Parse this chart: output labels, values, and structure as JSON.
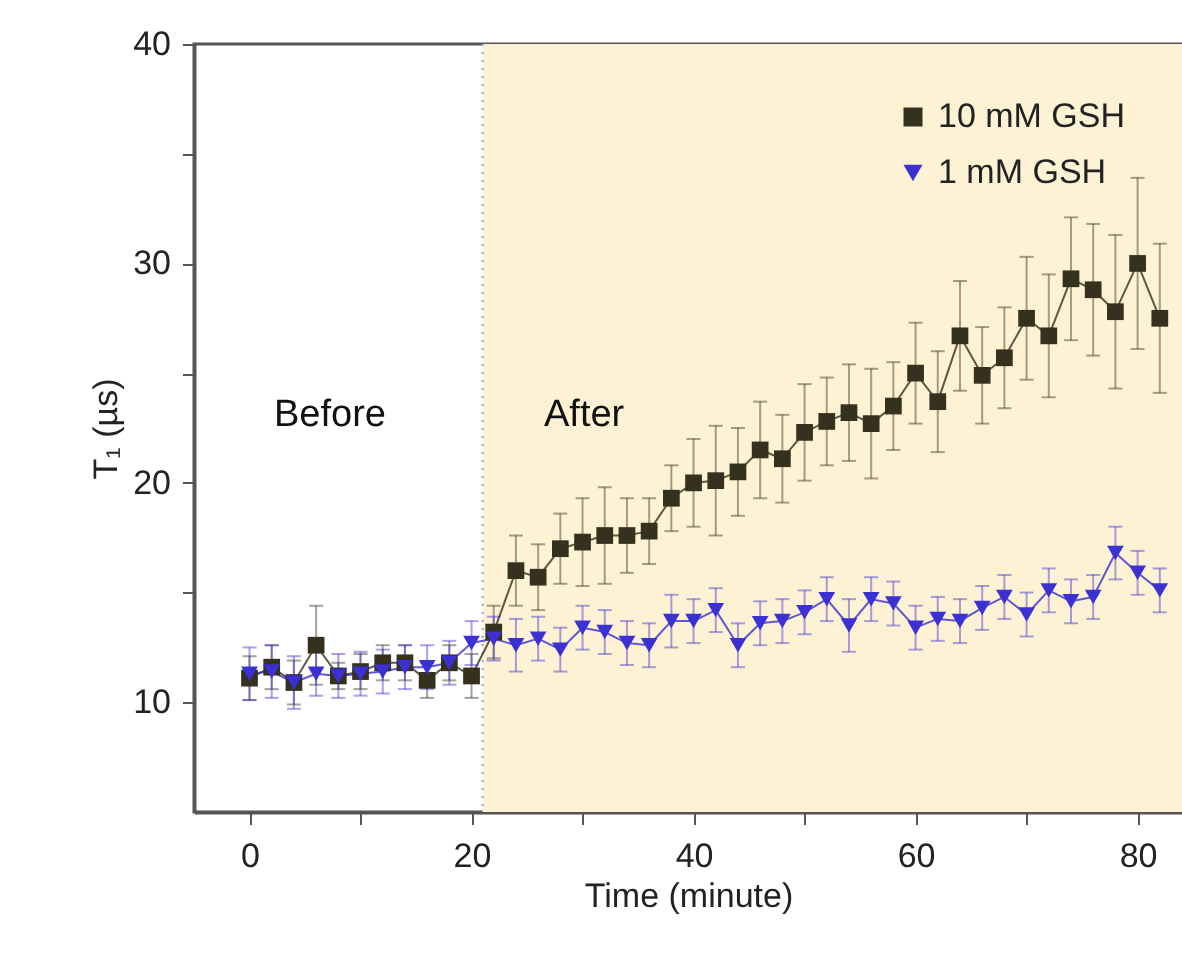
{
  "chart_data": {
    "type": "line",
    "xlabel": "Time (minute)",
    "ylabel": "T₁ (µs)",
    "x": [
      0,
      2,
      4,
      6,
      8,
      10,
      12,
      14,
      16,
      18,
      20,
      22,
      24,
      26,
      28,
      30,
      32,
      34,
      36,
      38,
      40,
      42,
      44,
      46,
      48,
      50,
      52,
      54,
      56,
      58,
      60,
      62,
      64,
      66,
      68,
      70,
      72,
      74,
      76,
      78,
      80,
      82
    ],
    "series": [
      {
        "name": "10 mM GSH",
        "color": "#35311e",
        "marker": "square",
        "values": [
          11.1,
          11.6,
          10.9,
          12.6,
          11.2,
          11.4,
          11.8,
          11.8,
          11.0,
          11.8,
          11.2,
          13.2,
          16.0,
          15.7,
          17.0,
          17.3,
          17.6,
          17.6,
          17.8,
          19.3,
          20.0,
          20.1,
          20.5,
          21.5,
          21.1,
          22.3,
          22.8,
          23.2,
          22.7,
          23.5,
          25.0,
          23.7,
          26.7,
          24.9,
          25.7,
          27.5,
          26.7,
          29.3,
          28.8,
          27.8,
          30.0,
          27.5
        ],
        "errors": [
          1,
          1,
          1,
          1.8,
          0.6,
          0.8,
          0.8,
          0.8,
          0.8,
          0.8,
          1,
          1.2,
          1.6,
          1.5,
          1.6,
          2,
          2.2,
          1.7,
          1.5,
          1.5,
          2,
          2.5,
          2,
          2.2,
          2,
          2.2,
          2,
          2.2,
          2.5,
          2,
          2.3,
          2.3,
          2.5,
          2.2,
          2.3,
          2.8,
          2.8,
          2.8,
          3,
          3.5,
          3.9,
          3.4
        ]
      },
      {
        "name": "1 mM GSH",
        "color": "#3b30d2",
        "marker": "triangle",
        "values": [
          11.3,
          11.4,
          10.9,
          11.3,
          11.2,
          11.3,
          11.4,
          11.6,
          11.6,
          11.8,
          12.7,
          12.9,
          12.6,
          12.9,
          12.4,
          13.4,
          13.2,
          12.7,
          12.6,
          13.7,
          13.7,
          14.2,
          12.6,
          13.6,
          13.7,
          14.1,
          14.7,
          13.5,
          14.7,
          14.5,
          13.4,
          13.8,
          13.7,
          14.3,
          14.8,
          14.0,
          15.1,
          14.6,
          14.8,
          16.8,
          15.9,
          15.1
        ],
        "errors": [
          1.2,
          1.2,
          1.2,
          1,
          1,
          1,
          1,
          1,
          1,
          1,
          1,
          1,
          1.2,
          1,
          1,
          1,
          1,
          1,
          1,
          1.2,
          1,
          1,
          1,
          1,
          1,
          1,
          1,
          1.2,
          1,
          1,
          1,
          1,
          1,
          1,
          1,
          1,
          1,
          1,
          1,
          1.2,
          1,
          1
        ]
      }
    ],
    "xlim": [
      -5,
      84
    ],
    "xticks": [
      0,
      {
        "value": 10,
        "label": null
      },
      20,
      {
        "value": 30,
        "label": null
      },
      40,
      {
        "value": 50,
        "label": null
      },
      60,
      {
        "value": 70,
        "label": null
      },
      80
    ],
    "ylim": [
      5,
      40
    ],
    "yticks": [
      10,
      {
        "value": 15,
        "label": null
      },
      20,
      {
        "value": 25,
        "label": null
      },
      30,
      {
        "value": 35,
        "label": null
      },
      40
    ],
    "bands": [
      {
        "axis": "x",
        "from": 21,
        "to": 84,
        "label": null,
        "color": "#fdf2d4"
      }
    ],
    "ref_lines": [
      {
        "axis": "x",
        "value": 21,
        "label": null,
        "color": "#88aacc",
        "line_style": "dotted"
      }
    ],
    "annotations": [
      "Before",
      "After"
    ],
    "legend": "top right",
    "grid": false
  }
}
